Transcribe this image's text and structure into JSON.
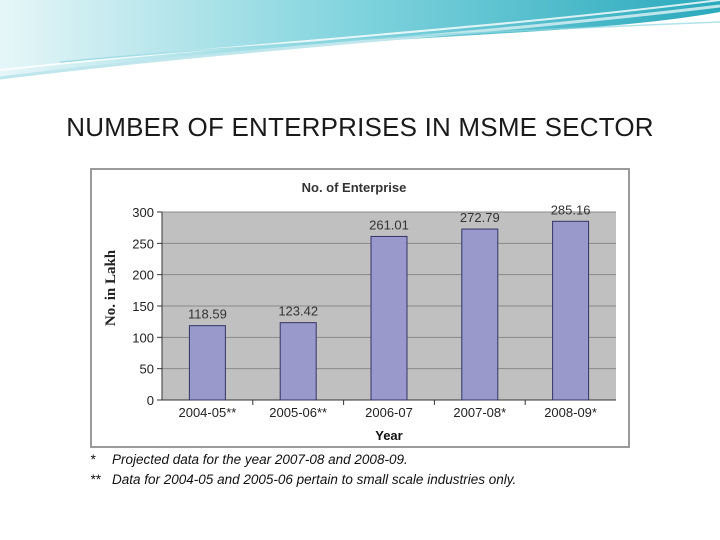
{
  "slide": {
    "title": "NUMBER OF ENTERPRISES IN MSME SECTOR"
  },
  "colors": {
    "bar_fill": "#9999cc",
    "bar_edge": "#333366",
    "plot_bg": "#c0c0c0",
    "banner_teal": "#3fb8c8"
  },
  "chart_data": {
    "type": "bar",
    "title": "No. of Enterprise",
    "xlabel": "Year",
    "ylabel": "No. in Lakh",
    "categories": [
      "2004-05**",
      "2005-06**",
      "2006-07",
      "2007-08*",
      "2008-09*"
    ],
    "values": [
      118.59,
      123.42,
      261.01,
      272.79,
      285.16
    ],
    "data_labels": [
      "118.59",
      "123.42",
      "261.01",
      "272.79",
      "285.16"
    ],
    "ylim": [
      0,
      300
    ],
    "yticks": [
      0,
      50,
      100,
      150,
      200,
      250,
      300
    ],
    "grid": true,
    "legend": "none"
  },
  "footnotes": [
    {
      "mark": "*",
      "text": "Projected data for the year 2007-08 and 2008-09."
    },
    {
      "mark": "**",
      "text": "Data for 2004-05 and 2005-06 pertain to small scale industries only."
    }
  ]
}
